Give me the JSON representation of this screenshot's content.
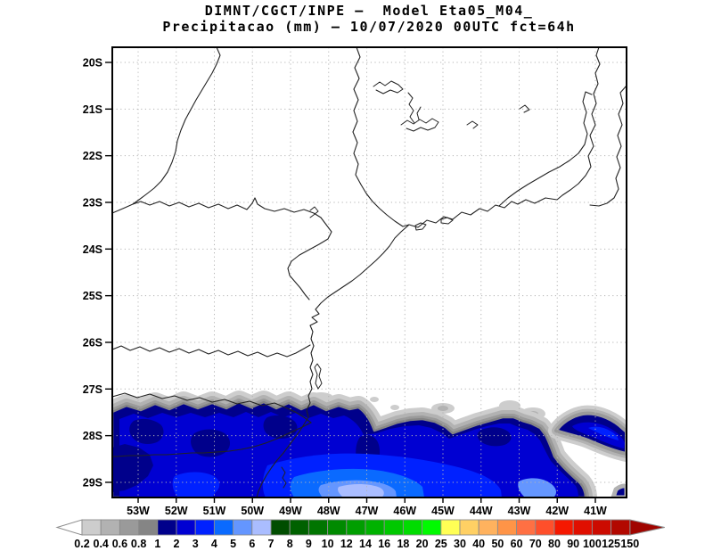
{
  "title": {
    "line1": "DIMNT/CGCT/INPE —  Model Eta05_M04_",
    "line2": "Precipitacao (mm) — 10/07/2020 00UTC fct=64h"
  },
  "map": {
    "lat_labels": [
      "20S",
      "21S",
      "22S",
      "23S",
      "24S",
      "25S",
      "26S",
      "27S",
      "28S",
      "29S"
    ],
    "lon_labels": [
      "53W",
      "52W",
      "51W",
      "50W",
      "49W",
      "48W",
      "47W",
      "46W",
      "45W",
      "44W",
      "43W",
      "42W",
      "41W"
    ]
  },
  "colorbar": {
    "labels": [
      "0.2",
      "0.4",
      "0.6",
      "0.8",
      "1",
      "2",
      "3",
      "4",
      "5",
      "6",
      "7",
      "8",
      "9",
      "10",
      "12",
      "14",
      "16",
      "18",
      "20",
      "25",
      "30",
      "40",
      "50",
      "60",
      "70",
      "80",
      "90",
      "100",
      "125",
      "150"
    ],
    "colors": [
      "#cdcdcd",
      "#b2b2b2",
      "#9a9a9a",
      "#858585",
      "#00008b",
      "#0000d2",
      "#0021ff",
      "#0a6aff",
      "#6496ff",
      "#aabdff",
      "#004d00",
      "#006100",
      "#007500",
      "#008a00",
      "#009e00",
      "#00b200",
      "#00c800",
      "#00dc00",
      "#00fa00",
      "#ffff55",
      "#ffd064",
      "#ffb25e",
      "#ff9447",
      "#ff7043",
      "#ff4f2b",
      "#f51800",
      "#e00f00",
      "#cc0b00",
      "#b20800"
    ],
    "left_arrow_color": "#ffffff",
    "right_arrow_color": "#a00500"
  },
  "chart_data": {
    "type": "filled-contour-map",
    "variable": "Precipitacao (mm)",
    "model": "Eta05_M04",
    "run": "10/07/2020 00UTC",
    "forecast": "fct=64h",
    "institution": "DIMNT/CGCT/INPE",
    "lat_ticks": [
      "20S",
      "21S",
      "22S",
      "23S",
      "24S",
      "25S",
      "26S",
      "27S",
      "28S",
      "29S"
    ],
    "lon_ticks": [
      "53W",
      "52W",
      "51W",
      "50W",
      "49W",
      "48W",
      "47W",
      "46W",
      "45W",
      "44W",
      "43W",
      "42W",
      "41W"
    ],
    "scale_levels_mm": [
      0.2,
      0.4,
      0.6,
      0.8,
      1,
      2,
      3,
      4,
      5,
      6,
      7,
      8,
      9,
      10,
      12,
      14,
      16,
      18,
      20,
      25,
      30,
      40,
      50,
      60,
      70,
      80,
      90,
      100,
      125,
      150
    ],
    "shaded_summary": "Precipitation band along 27.5S-29.3S from 53W to ~41W; mostly 1-6 mm (grays 0.2-1 on fringes, navy/blue 1-5 core, light blue 5-7 patches near 48W and 43W); rest of domain clear"
  }
}
